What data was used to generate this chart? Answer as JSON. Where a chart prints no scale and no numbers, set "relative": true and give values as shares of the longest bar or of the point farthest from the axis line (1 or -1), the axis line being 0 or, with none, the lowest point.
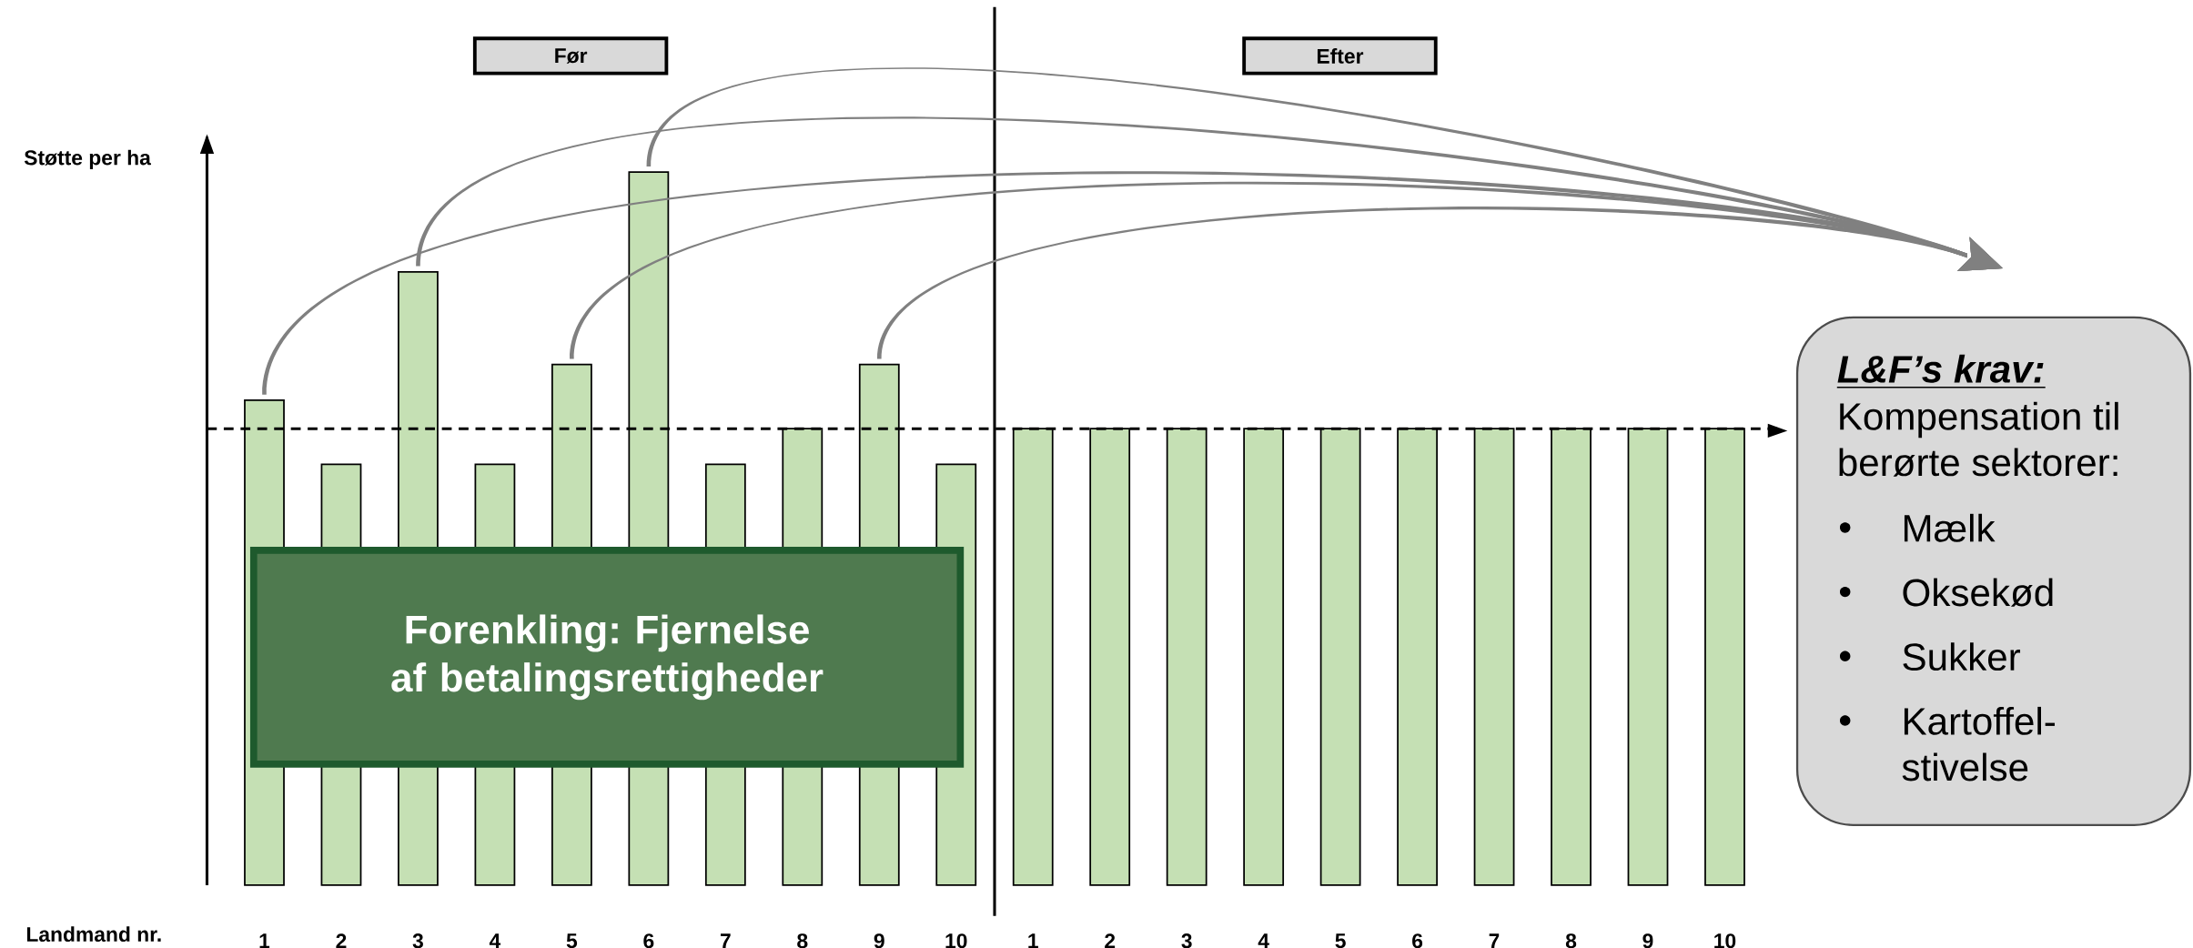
{
  "chart_data": {
    "type": "bar",
    "relative": true,
    "xlabel": "Landmand nr.",
    "ylabel": "Støtte per ha",
    "categories": [
      "1",
      "2",
      "3",
      "4",
      "5",
      "6",
      "7",
      "8",
      "9",
      "10",
      "1",
      "2",
      "3",
      "4",
      "5",
      "6",
      "7",
      "8",
      "9",
      "10"
    ],
    "values": [
      0.68,
      0.59,
      0.86,
      0.59,
      0.73,
      1,
      0.59,
      0.64,
      0.73,
      0.59,
      0.64,
      0.64,
      0.64,
      0.64,
      0.64,
      0.64,
      0.64,
      0.64,
      0.64,
      0.64
    ],
    "color": "#c5e0b4",
    "ref_lines": [
      {
        "axis": "y",
        "value": 0.64,
        "line_style": "dashed"
      }
    ],
    "annotations": [
      "Før",
      "Efter",
      "Forenkling: Fjernelse af betalingsrettigheder",
      "L&F’s krav:",
      "Kompensation til berørte sektorer:",
      "•",
      "Mælk",
      "•",
      "Oksekød",
      "•",
      "Sukker",
      "•",
      "Kartoffel-stivelse"
    ]
  }
}
